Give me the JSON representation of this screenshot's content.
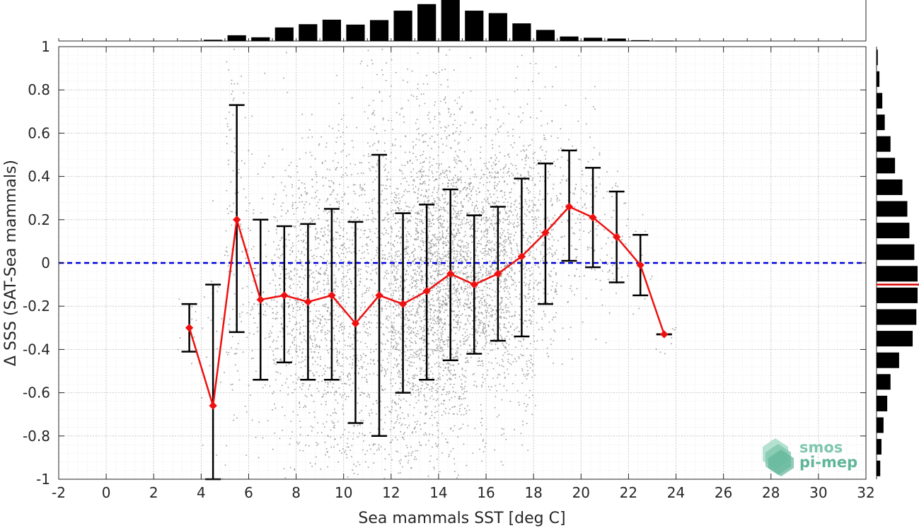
{
  "chart_data": {
    "type": "scatter",
    "title": "",
    "xlabel": "Sea mammals SST [deg C]",
    "ylabel": "Δ SSS (SAT-Sea mammals)",
    "xlim": [
      -2,
      32
    ],
    "ylim": [
      -1,
      1
    ],
    "xticks": [
      -2,
      0,
      2,
      4,
      6,
      8,
      10,
      12,
      14,
      16,
      18,
      20,
      22,
      24,
      26,
      28,
      30,
      32
    ],
    "xtick_labels": [
      "-2",
      "0",
      "2",
      "4",
      "6",
      "8",
      "10",
      "12",
      "14",
      "16",
      "18",
      "20",
      "22",
      "24",
      "26",
      "28",
      "30",
      "32"
    ],
    "yticks": [
      -1,
      -0.8,
      -0.6,
      -0.4,
      -0.2,
      0,
      0.2,
      0.4,
      0.6,
      0.8,
      1
    ],
    "ytick_labels": [
      "-1",
      "-0.8",
      "-0.6",
      "-0.4",
      "-0.2",
      "0",
      "0.2",
      "0.4",
      "0.6",
      "0.8",
      "1"
    ],
    "grid": true,
    "reference_line": {
      "y": 0,
      "style": "dashed",
      "color": "#0000dd"
    },
    "binned_mean": {
      "color": "#ee1111",
      "x": [
        3.5,
        4.5,
        5.5,
        6.5,
        7.5,
        8.5,
        9.5,
        10.5,
        11.5,
        12.5,
        13.5,
        14.5,
        15.5,
        16.5,
        17.5,
        18.5,
        19.5,
        20.5,
        21.5,
        22.5,
        23.5
      ],
      "mean": [
        -0.3,
        -0.66,
        0.2,
        -0.17,
        -0.15,
        -0.18,
        -0.15,
        -0.28,
        -0.15,
        -0.19,
        -0.13,
        -0.05,
        -0.1,
        -0.05,
        0.03,
        0.14,
        0.26,
        0.21,
        0.12,
        -0.01,
        -0.33
      ],
      "err_low": [
        -0.41,
        -1.0,
        -0.32,
        -0.54,
        -0.46,
        -0.54,
        -0.54,
        -0.74,
        -0.8,
        -0.6,
        -0.54,
        -0.45,
        -0.42,
        -0.36,
        -0.34,
        -0.19,
        0.01,
        -0.02,
        -0.09,
        -0.15,
        -0.33
      ],
      "err_high": [
        -0.19,
        -0.1,
        0.73,
        0.2,
        0.17,
        0.18,
        0.25,
        0.19,
        0.5,
        0.23,
        0.27,
        0.34,
        0.22,
        0.26,
        0.39,
        0.46,
        0.52,
        0.44,
        0.33,
        0.13,
        -0.33
      ]
    },
    "scatter_points": {
      "color": "#8c8c8c",
      "count": 6000,
      "description_stats": "sample cloud concentrated 7-20 deg C, ΔSSS spread about bin means"
    },
    "histogram_x": {
      "bin_centers": [
        3.5,
        4.5,
        5.5,
        6.5,
        7.5,
        8.5,
        9.5,
        10.5,
        11.5,
        12.5,
        13.5,
        14.5,
        15.5,
        16.5,
        17.5,
        18.5,
        19.5,
        20.5,
        21.5,
        22.5,
        23.5
      ],
      "relative_counts": [
        0.01,
        0.03,
        0.14,
        0.09,
        0.33,
        0.41,
        0.52,
        0.4,
        0.51,
        0.74,
        0.9,
        1.0,
        0.74,
        0.68,
        0.43,
        0.27,
        0.11,
        0.08,
        0.06,
        0.02,
        0.01
      ]
    },
    "histogram_y": {
      "bin_centers": [
        -0.95,
        -0.85,
        -0.75,
        -0.65,
        -0.55,
        -0.45,
        -0.35,
        -0.25,
        -0.15,
        -0.05,
        0.05,
        0.15,
        0.25,
        0.35,
        0.45,
        0.55,
        0.65,
        0.75,
        0.85,
        0.95
      ],
      "relative_counts": [
        0.09,
        0.12,
        0.17,
        0.26,
        0.34,
        0.55,
        0.88,
        0.97,
        1.0,
        1.0,
        0.92,
        0.8,
        0.75,
        0.63,
        0.45,
        0.34,
        0.2,
        0.14,
        0.07,
        0.03
      ],
      "median_marker": {
        "y": -0.1,
        "color": "#dd0000"
      }
    }
  },
  "logo": {
    "line1": "smos",
    "line2": "pi-mep",
    "color": "#5fb59a"
  }
}
